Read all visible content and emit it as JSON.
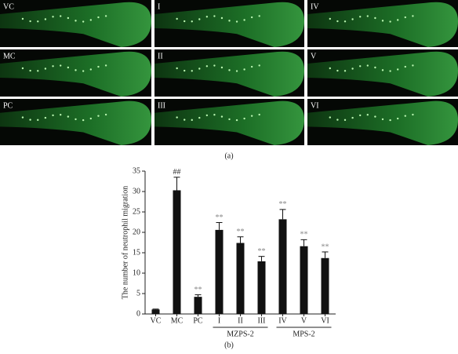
{
  "panel_a": {
    "labels": [
      "VC",
      "I",
      "IV",
      "MC",
      "II",
      "V",
      "PC",
      "III",
      "VI"
    ],
    "caption": "(a)"
  },
  "chart_data": {
    "type": "bar",
    "ylabel": "The number of neutrophil migration",
    "categories": [
      "VC",
      "MC",
      "PC",
      "I",
      "II",
      "III",
      "IV",
      "V",
      "VI"
    ],
    "values": [
      1.1,
      30.3,
      4.2,
      20.6,
      17.4,
      12.9,
      23.2,
      16.6,
      13.7
    ],
    "errors": [
      0.1,
      3.2,
      0.5,
      1.8,
      1.5,
      1.2,
      2.4,
      1.6,
      1.5
    ],
    "annotations": [
      null,
      "##",
      "**",
      "**",
      "**",
      "**",
      "**",
      "**",
      "**"
    ],
    "groups": [
      {
        "label": "MZPS-2",
        "categories": [
          "I",
          "II",
          "III"
        ]
      },
      {
        "label": "MPS-2",
        "categories": [
          "IV",
          "V",
          "VI"
        ]
      }
    ],
    "color": "#111111",
    "ylim": [
      0,
      35
    ],
    "yticks": [
      0,
      5,
      10,
      15,
      20,
      25,
      30,
      35
    ],
    "caption": "(b)"
  }
}
